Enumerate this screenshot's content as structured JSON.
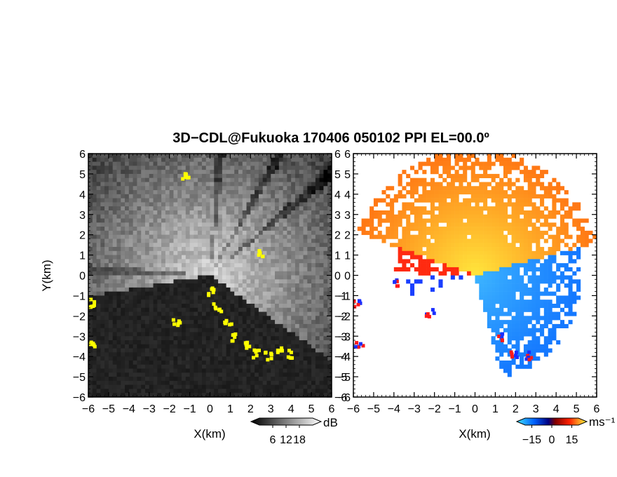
{
  "figure": {
    "title": "3D−CDL@Fukuoka 170406 050102 PPI EL=00.0º"
  },
  "chart_data": [
    {
      "type": "heatmap",
      "panel": "reflectivity",
      "xlabel": "X(km)",
      "ylabel": "Y(km)",
      "xlim": [
        -6,
        6
      ],
      "ylim": [
        -6,
        6
      ],
      "xticks": [
        "−6",
        "−5",
        "−4",
        "−3",
        "−2",
        "−1",
        "0",
        "1",
        "2",
        "3",
        "4",
        "5",
        "6"
      ],
      "yticks": [
        "6",
        "5",
        "4",
        "3",
        "2",
        "1",
        "0",
        "−1",
        "−2",
        "−3",
        "−4",
        "−5",
        "−6"
      ],
      "colorbar": {
        "unit": "dB",
        "ticks": [
          "6",
          "12",
          "18"
        ],
        "range": [
          0,
          24
        ]
      },
      "colors": {
        "background": "#1a1a1a",
        "high": "#f0f0f0",
        "flag": "#ffff00"
      }
    },
    {
      "type": "heatmap",
      "panel": "doppler_velocity",
      "xlabel": "X(km)",
      "ylabel": "",
      "xlim": [
        -6,
        6
      ],
      "ylim": [
        -6,
        6
      ],
      "xticks": [
        "−6",
        "−5",
        "−4",
        "−3",
        "−2",
        "−1",
        "0",
        "1",
        "2",
        "3",
        "4",
        "5",
        "6"
      ],
      "yticks": [
        "6",
        "5",
        "4",
        "3",
        "2",
        "1",
        "0",
        "−1",
        "−2",
        "−3",
        "−4",
        "−5",
        "−6"
      ],
      "colorbar": {
        "unit": "ms⁻¹",
        "ticks": [
          "−15",
          "0",
          "15"
        ],
        "range": [
          -20,
          20
        ]
      },
      "colors": {
        "approaching": "#1f6bff",
        "receding": "#ff8c00",
        "folded": "#ff1a1a"
      }
    }
  ]
}
